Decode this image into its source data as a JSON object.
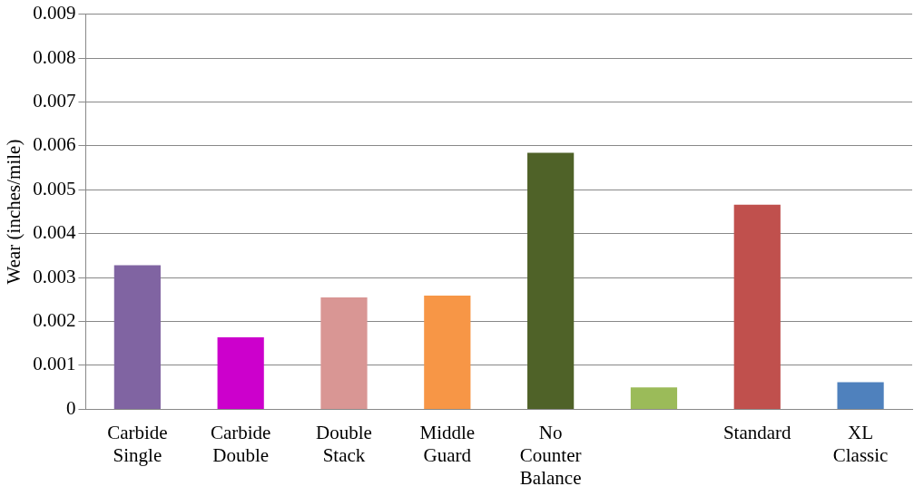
{
  "chart_data": {
    "type": "bar",
    "ylabel": "Wear (inches/mile)",
    "categories": [
      "Carbide Single",
      "Carbide Double",
      "Double Stack",
      "Middle Guard",
      "No Counter Balance",
      null,
      "Standard",
      "XL Classic"
    ],
    "values": [
      0.00328,
      0.00164,
      0.00255,
      0.00259,
      0.00584,
      0.0005,
      0.00466,
      0.00062
    ],
    "colors": [
      "#8064a2",
      "#cc00cc",
      "#d99694",
      "#f79646",
      "#4f6228",
      "#9bbb59",
      "#c0504d",
      "#4f81bd"
    ],
    "ylim": [
      0,
      0.009
    ],
    "yticks": [
      0,
      0.001,
      0.002,
      0.003,
      0.004,
      0.005,
      0.006,
      0.007,
      0.008,
      0.009
    ],
    "grid": "y",
    "legend": false
  }
}
